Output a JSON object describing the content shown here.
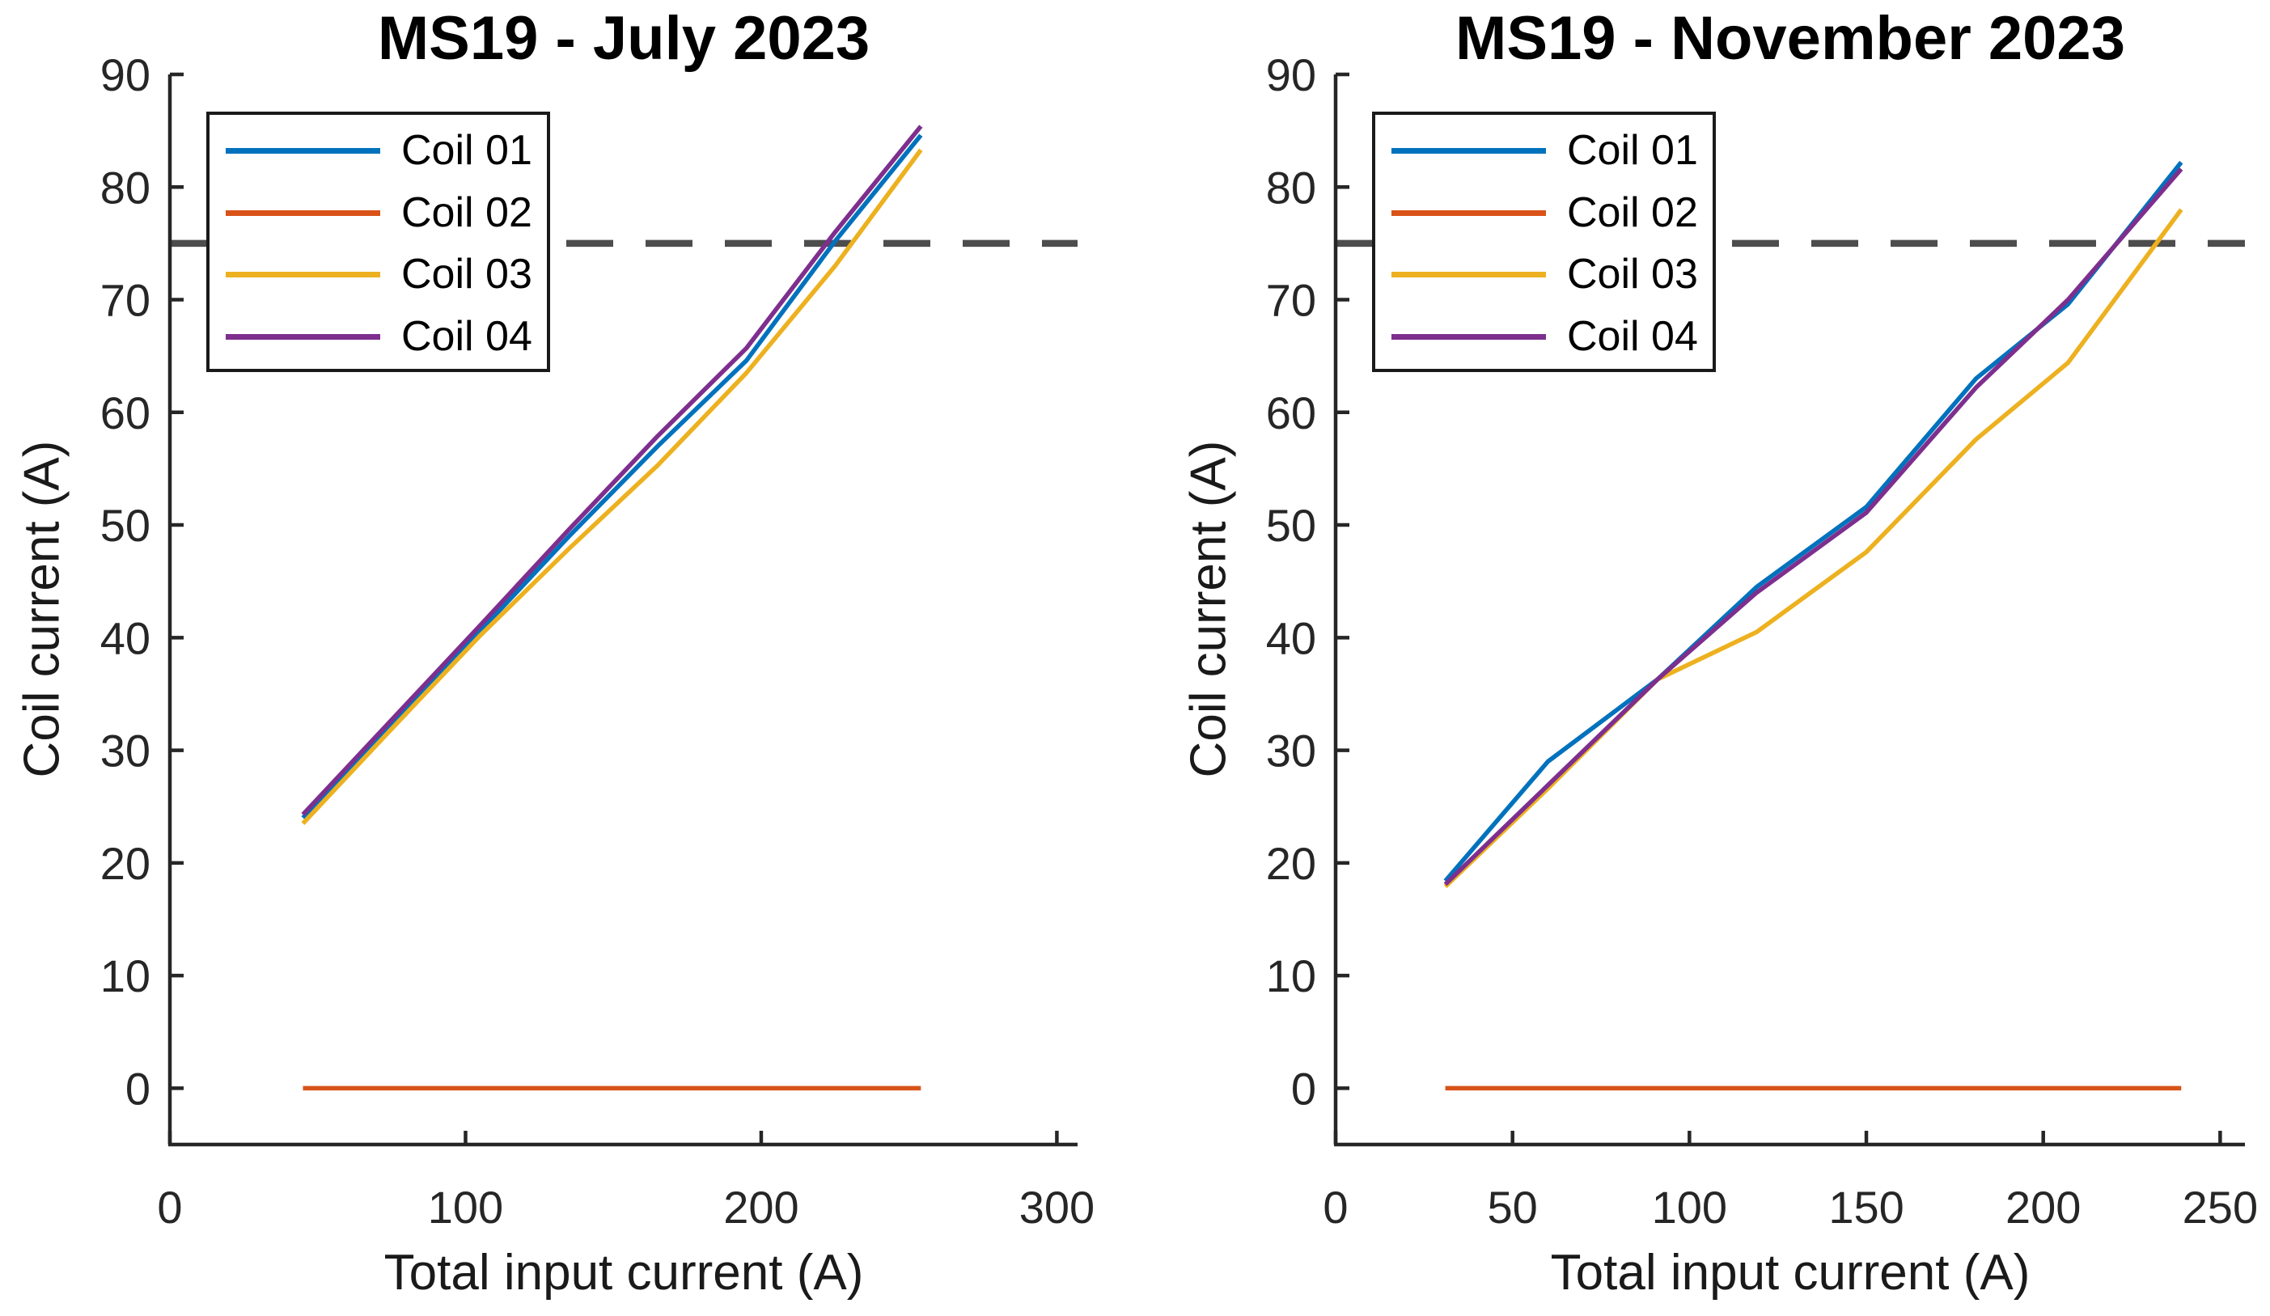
{
  "figure": {
    "background": "#ffffff",
    "axis_color": "#262626",
    "tick_label_color": "#262626",
    "threshold": {
      "value": 75,
      "color": "#4D4D4D",
      "style": "dashed"
    },
    "legend": {
      "position": "top-left",
      "items": [
        {
          "label": "Coil 01",
          "color": "#0072BD"
        },
        {
          "label": "Coil 02",
          "color": "#D95319"
        },
        {
          "label": "Coil 03",
          "color": "#EDB120"
        },
        {
          "label": "Coil 04",
          "color": "#7E2F8E"
        }
      ]
    }
  },
  "chart_data": [
    {
      "type": "line",
      "title": "MS19 - July 2023",
      "xlabel": "Total input current (A)",
      "ylabel": "Coil current (A)",
      "xlim": [
        0,
        307
      ],
      "ylim": [
        -5,
        90
      ],
      "xticks": [
        0,
        100,
        200,
        300
      ],
      "yticks": [
        0,
        10,
        20,
        30,
        40,
        50,
        60,
        70,
        80,
        90
      ],
      "grid": false,
      "legend_position": "top-left",
      "threshold_y": 75,
      "x": [
        45,
        75,
        105,
        135,
        165,
        195,
        225,
        254
      ],
      "series": [
        {
          "name": "Coil 01",
          "color": "#0072BD",
          "values": [
            24.0,
            32.4,
            40.6,
            49.0,
            57.0,
            64.6,
            75.2,
            84.6
          ]
        },
        {
          "name": "Coil 02",
          "color": "#D95319",
          "values": [
            0,
            0,
            0,
            0,
            0,
            0,
            0,
            0
          ]
        },
        {
          "name": "Coil 03",
          "color": "#EDB120",
          "values": [
            23.5,
            31.9,
            40.2,
            47.9,
            55.3,
            63.5,
            73.0,
            83.3
          ]
        },
        {
          "name": "Coil 04",
          "color": "#7E2F8E",
          "values": [
            24.3,
            32.7,
            41.1,
            49.6,
            57.9,
            65.7,
            76.0,
            85.4
          ]
        }
      ]
    },
    {
      "type": "line",
      "title": "MS19 - November 2023",
      "xlabel": "Total input current (A)",
      "ylabel": "Coil current (A)",
      "xlim": [
        0,
        257
      ],
      "ylim": [
        -5,
        90
      ],
      "xticks": [
        0,
        50,
        100,
        150,
        200,
        250
      ],
      "yticks": [
        0,
        10,
        20,
        30,
        40,
        50,
        60,
        70,
        80,
        90
      ],
      "grid": false,
      "legend_position": "top-left",
      "threshold_y": 75,
      "x": [
        31,
        60,
        91,
        119,
        150,
        181,
        207,
        239
      ],
      "series": [
        {
          "name": "Coil 01",
          "color": "#0072BD",
          "values": [
            18.4,
            29.0,
            36.3,
            44.5,
            51.6,
            63.0,
            69.6,
            82.2
          ]
        },
        {
          "name": "Coil 02",
          "color": "#D95319",
          "values": [
            0,
            0,
            0,
            0,
            0,
            0,
            0,
            0
          ]
        },
        {
          "name": "Coil 03",
          "color": "#EDB120",
          "values": [
            17.9,
            26.6,
            36.3,
            40.5,
            47.6,
            57.6,
            64.4,
            78.0
          ]
        },
        {
          "name": "Coil 04",
          "color": "#7E2F8E",
          "values": [
            18.1,
            26.9,
            36.3,
            44.0,
            51.1,
            62.2,
            70.0,
            81.6
          ]
        }
      ]
    }
  ]
}
